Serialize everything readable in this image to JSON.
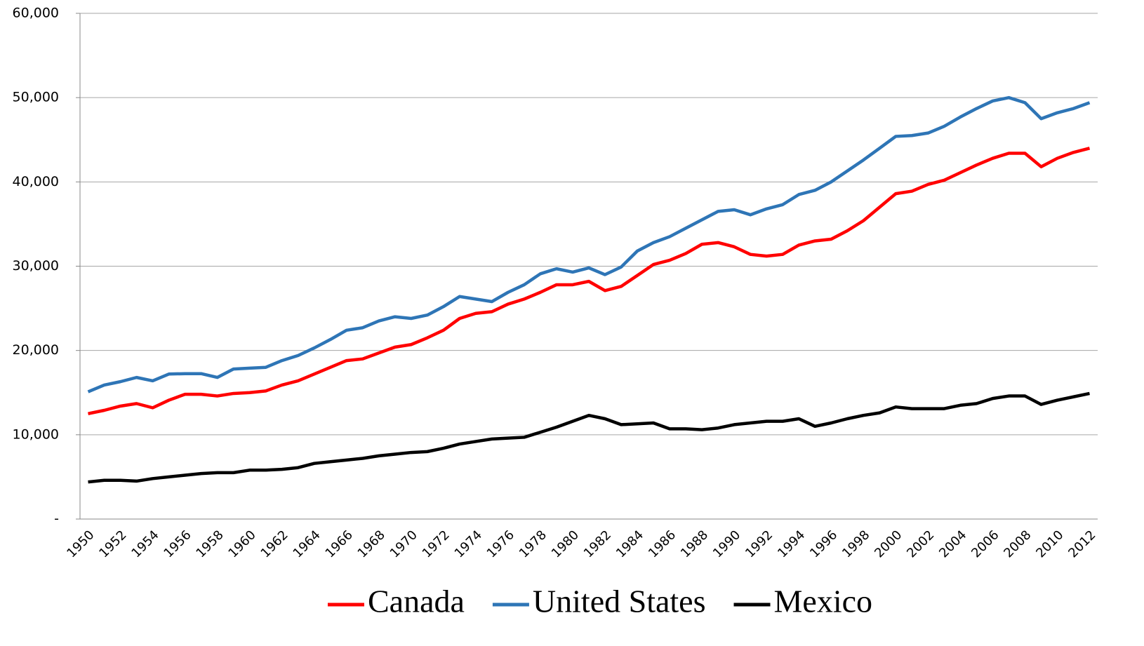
{
  "chart_data": {
    "type": "line",
    "categories": [
      "1950",
      null,
      "1952",
      null,
      "1954",
      null,
      "1956",
      null,
      "1958",
      null,
      "1960",
      null,
      "1962",
      null,
      "1964",
      null,
      "1966",
      null,
      "1968",
      null,
      "1970",
      null,
      "1972",
      null,
      "1974",
      null,
      "1976",
      null,
      "1978",
      null,
      "1980",
      null,
      "1982",
      null,
      "1984",
      null,
      "1986",
      null,
      "1988",
      null,
      "1990",
      null,
      "1992",
      null,
      "1994",
      null,
      "1996",
      null,
      "1998",
      null,
      "2000",
      null,
      "2002",
      null,
      "2004",
      null,
      "2006",
      null,
      "2008",
      null,
      "2010",
      null,
      "2012"
    ],
    "series": [
      {
        "name": "Canada",
        "color": "#ff0000",
        "values": [
          12500,
          12900,
          13400,
          13700,
          13200,
          14100,
          14800,
          14800,
          14600,
          14900,
          15000,
          15200,
          15900,
          16400,
          17200,
          18000,
          18800,
          19000,
          19700,
          20400,
          20700,
          21500,
          22400,
          23800,
          24400,
          24600,
          25500,
          26100,
          26900,
          27800,
          27800,
          28200,
          27100,
          27600,
          28900,
          30200,
          30700,
          31500,
          32600,
          32800,
          32300,
          31400,
          31200,
          31400,
          32500,
          33000,
          33200,
          34200,
          35400,
          37000,
          38600,
          38900,
          39700,
          40200,
          41100,
          42000,
          42800,
          43400,
          43400,
          41800,
          42800,
          43500,
          44000
        ]
      },
      {
        "name": "United States",
        "color": "#2e75b6",
        "values": [
          15100,
          15900,
          16300,
          16800,
          16400,
          17200,
          17250,
          17250,
          16800,
          17800,
          17900,
          18000,
          18800,
          19400,
          20300,
          21300,
          22400,
          22700,
          23500,
          24000,
          23800,
          24200,
          25200,
          26400,
          26100,
          25800,
          26900,
          27800,
          29100,
          29700,
          29300,
          29800,
          29000,
          29900,
          31800,
          32800,
          33500,
          34500,
          35500,
          36500,
          36700,
          36100,
          36800,
          37300,
          38500,
          39000,
          40000,
          41300,
          42600,
          44000,
          45400,
          45500,
          45800,
          46600,
          47700,
          48700,
          49600,
          50000,
          49400,
          47500,
          48200,
          48700,
          49400
        ]
      },
      {
        "name": "Mexico",
        "color": "#000000",
        "values": [
          4400,
          4600,
          4600,
          4500,
          4800,
          5000,
          5200,
          5400,
          5500,
          5500,
          5800,
          5800,
          5900,
          6100,
          6600,
          6800,
          7000,
          7200,
          7500,
          7700,
          7900,
          8000,
          8400,
          8900,
          9200,
          9500,
          9600,
          9700,
          10300,
          10900,
          11600,
          12300,
          11900,
          11200,
          11300,
          11400,
          10700,
          10700,
          10600,
          10800,
          11200,
          11400,
          11600,
          11600,
          11900,
          11000,
          11400,
          11900,
          12300,
          12600,
          13300,
          13100,
          13100,
          13100,
          13500,
          13700,
          14300,
          14600,
          14600,
          13600,
          14100,
          14500,
          14900
        ]
      }
    ],
    "ylim": [
      0,
      60000
    ],
    "yticks": [
      {
        "value": 0,
        "label": "-"
      },
      {
        "value": 10000,
        "label": "10,000"
      },
      {
        "value": 20000,
        "label": "20,000"
      },
      {
        "value": 30000,
        "label": "30,000"
      },
      {
        "value": 40000,
        "label": "40,000"
      },
      {
        "value": 50000,
        "label": "50,000"
      },
      {
        "value": 60000,
        "label": "60,000"
      }
    ],
    "grid": true,
    "legend": "bottom"
  }
}
